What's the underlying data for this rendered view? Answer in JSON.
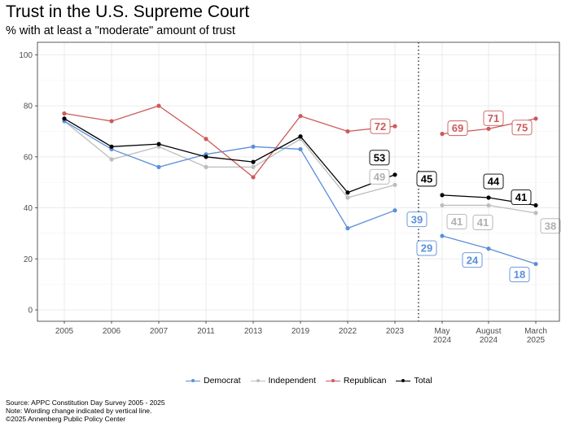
{
  "header": {
    "title": "Trust in the U.S. Supreme Court",
    "subtitle": "% with at least a \"moderate\" amount of trust"
  },
  "footer": {
    "source": "Source: APPC Constitution Day Survey 2005 - 2025",
    "note": "Note: Wording change indicated by vertical line.",
    "copyright": "©2025 Annenberg Public Policy Center"
  },
  "chart_data": {
    "type": "line",
    "title": "Trust in the U.S. Supreme Court",
    "subtitle": "% with at least a \"moderate\" amount of trust",
    "xlabel": "",
    "ylabel": "",
    "ylim": [
      0,
      100
    ],
    "yticks": [
      0,
      20,
      40,
      60,
      80,
      100
    ],
    "grid": true,
    "legend_position": "bottom",
    "categories": [
      "2005",
      "2006",
      "2007",
      "2011",
      "2013",
      "2019",
      "2022",
      "2023",
      "May 2024",
      "August 2024",
      "March 2025"
    ],
    "category_lines": [
      [
        "2005"
      ],
      [
        "2006"
      ],
      [
        "2007"
      ],
      [
        "2011"
      ],
      [
        "2013"
      ],
      [
        "2019"
      ],
      [
        "2022"
      ],
      [
        "2023"
      ],
      [
        "May",
        "2024"
      ],
      [
        "August",
        "2024"
      ],
      [
        "March",
        "2025"
      ]
    ],
    "wording_change_after": "2023",
    "series": [
      {
        "name": "Democrat",
        "color": "#5b8fd9",
        "label_color": "#5b8fd9",
        "values": [
          74,
          63,
          56,
          61,
          64,
          63,
          32,
          39,
          29,
          24,
          18
        ],
        "labeled_points": [
          {
            "index": 7,
            "text": "39"
          },
          {
            "index": 8,
            "text": "29"
          },
          {
            "index": 9,
            "text": "24"
          },
          {
            "index": 10,
            "text": "18"
          }
        ]
      },
      {
        "name": "Independent",
        "color": "#bdbdbd",
        "label_color": "#b0b0b0",
        "values": [
          74,
          59,
          64,
          56,
          56,
          67,
          44,
          49,
          41,
          41,
          38
        ],
        "labeled_points": [
          {
            "index": 7,
            "text": "49"
          },
          {
            "index": 8,
            "text": "41"
          },
          {
            "index": 9,
            "text": "41"
          },
          {
            "index": 10,
            "text": "38"
          }
        ]
      },
      {
        "name": "Republican",
        "color": "#cc5a5a",
        "label_color": "#cc5a5a",
        "values": [
          77,
          74,
          80,
          67,
          52,
          76,
          70,
          72,
          69,
          71,
          75
        ],
        "labeled_points": [
          {
            "index": 7,
            "text": "72"
          },
          {
            "index": 8,
            "text": "69"
          },
          {
            "index": 9,
            "text": "71"
          },
          {
            "index": 10,
            "text": "75"
          }
        ]
      },
      {
        "name": "Total",
        "color": "#000000",
        "label_color": "#000000",
        "values": [
          75,
          64,
          65,
          60,
          58,
          68,
          46,
          53,
          45,
          44,
          41
        ],
        "labeled_points": [
          {
            "index": 7,
            "text": "53"
          },
          {
            "index": 8,
            "text": "45"
          },
          {
            "index": 9,
            "text": "44"
          },
          {
            "index": 10,
            "text": "41"
          }
        ]
      }
    ]
  }
}
